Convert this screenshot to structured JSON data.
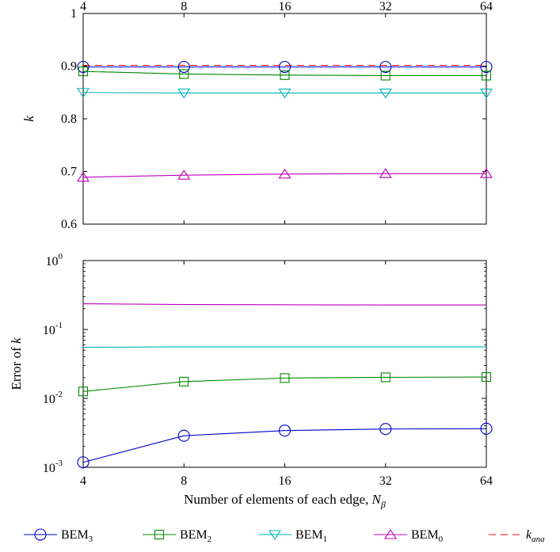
{
  "chart_data": [
    {
      "type": "line",
      "x": [
        4,
        8,
        16,
        32,
        64
      ],
      "x_scale": "log2",
      "x_ticks": [
        "4",
        "8",
        "16",
        "32",
        "64"
      ],
      "top_ticks": [
        "4",
        "8",
        "16",
        "32",
        "64"
      ],
      "ylabel": "k",
      "ylim": [
        0.6,
        1.0
      ],
      "y_ticks": [
        "0.6",
        "0.7",
        "0.8",
        "0.9",
        "1"
      ],
      "series": [
        {
          "name": "BEM",
          "sub": "3",
          "color": "#0000cc",
          "marker": "circle",
          "values": [
            0.8985,
            0.8985,
            0.8985,
            0.8985,
            0.8985
          ]
        },
        {
          "name": "BEM",
          "sub": "2",
          "color": "#008800",
          "marker": "square",
          "values": [
            0.89,
            0.885,
            0.883,
            0.882,
            0.882
          ]
        },
        {
          "name": "BEM",
          "sub": "1",
          "color": "#00b5b5",
          "marker": "triangle-down",
          "values": [
            0.85,
            0.849,
            0.849,
            0.849,
            0.849
          ]
        },
        {
          "name": "BEM",
          "sub": "0",
          "color": "#bb00bb",
          "marker": "triangle-up",
          "values": [
            0.689,
            0.693,
            0.695,
            0.696,
            0.696
          ]
        },
        {
          "name": "k",
          "sub": "ana",
          "color": "#ff0000",
          "marker": "none",
          "dash": true,
          "values": [
            0.9015,
            0.9015,
            0.9015,
            0.9015,
            0.9015
          ]
        }
      ]
    },
    {
      "type": "line",
      "x": [
        4,
        8,
        16,
        32,
        64
      ],
      "x_scale": "log2",
      "x_ticks": [
        "4",
        "8",
        "16",
        "32",
        "64"
      ],
      "xlabel": "Number of elements of each edge, ",
      "xlabel_var": "N",
      "xlabel_sub": "β",
      "ylabel": "Error of ",
      "ylabel_var": "k",
      "y_scale": "log10",
      "ylim": [
        0.001,
        1
      ],
      "y_ticks": [
        {
          "base": "10",
          "exp": "0"
        },
        {
          "base": "10",
          "exp": "-1"
        },
        {
          "base": "10",
          "exp": "-2"
        },
        {
          "base": "10",
          "exp": "-3"
        }
      ],
      "series": [
        {
          "name": "BEM",
          "sub": "3",
          "color": "#0000cc",
          "marker": "circle",
          "values": [
            0.00118,
            0.00287,
            0.00341,
            0.00359,
            0.00363
          ]
        },
        {
          "name": "BEM",
          "sub": "2",
          "color": "#008800",
          "marker": "square",
          "values": [
            0.0126,
            0.0175,
            0.0197,
            0.0202,
            0.0204
          ]
        },
        {
          "name": "BEM",
          "sub": "1",
          "color": "#00b5b5",
          "marker": "none",
          "values": [
            0.055,
            0.056,
            0.056,
            0.056,
            0.056
          ]
        },
        {
          "name": "BEM",
          "sub": "0",
          "color": "#bb00bb",
          "marker": "none",
          "values": [
            0.236,
            0.23,
            0.228,
            0.227,
            0.227
          ]
        }
      ]
    }
  ],
  "legend": {
    "placement": "bottom",
    "entries": [
      {
        "name": "BEM",
        "sub": "3",
        "color": "#0000cc",
        "marker": "circle"
      },
      {
        "name": "BEM",
        "sub": "2",
        "color": "#008800",
        "marker": "square"
      },
      {
        "name": "BEM",
        "sub": "1",
        "color": "#00b5b5",
        "marker": "triangle-down"
      },
      {
        "name": "BEM",
        "sub": "0",
        "color": "#bb00bb",
        "marker": "triangle-up"
      },
      {
        "name": "k",
        "sub": "ana",
        "color": "#ff0000",
        "marker": "none",
        "dash": true
      }
    ]
  }
}
